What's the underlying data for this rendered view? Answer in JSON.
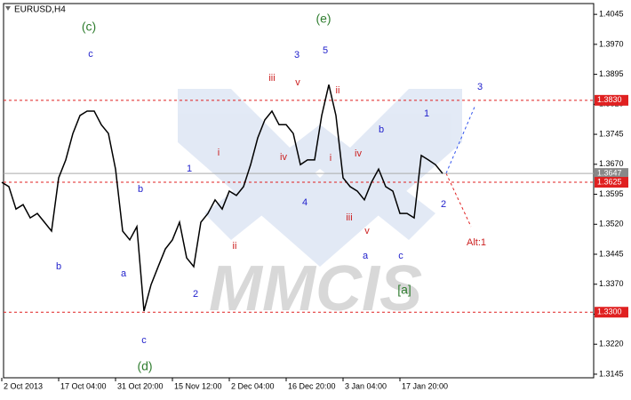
{
  "chart_data": {
    "type": "line",
    "title": "EURUSD,H4",
    "watermark": "MMCIS",
    "color": "#000000",
    "categories": [
      "2 Oct 2013",
      null,
      null,
      null,
      null,
      null,
      null,
      null,
      "17 Oct 04:00",
      null,
      null,
      null,
      null,
      null,
      null,
      null,
      "31 Oct 20:00",
      null,
      null,
      null,
      null,
      null,
      null,
      null,
      "15 Nov 12:00",
      null,
      null,
      null,
      null,
      null,
      null,
      null,
      "2 Dec 04:00",
      null,
      null,
      null,
      null,
      null,
      null,
      null,
      "16 Dec 20:00",
      null,
      null,
      null,
      null,
      null,
      null,
      null,
      "3 Jan 04:00",
      null,
      null,
      null,
      null,
      null,
      null,
      null,
      "17 Jan 20:00",
      null,
      null,
      null,
      null,
      null,
      null
    ],
    "values": [
      1.3625,
      1.3614,
      1.3558,
      1.3569,
      1.3536,
      1.3547,
      1.3525,
      1.3503,
      1.3636,
      1.3681,
      1.3747,
      1.3792,
      1.3803,
      1.3803,
      1.3769,
      1.3747,
      1.3658,
      1.3503,
      1.3481,
      1.3514,
      1.3303,
      1.3369,
      1.3414,
      1.3458,
      1.3481,
      1.3525,
      1.3436,
      1.3414,
      1.3525,
      1.3547,
      1.3581,
      1.3558,
      1.3603,
      1.3592,
      1.3614,
      1.3669,
      1.3736,
      1.3781,
      1.3803,
      1.3769,
      1.3769,
      1.3747,
      1.3669,
      1.3681,
      1.3681,
      1.3792,
      1.3869,
      1.3792,
      1.3636,
      1.3614,
      1.3603,
      1.3581,
      1.3625,
      1.3658,
      1.3614,
      1.3603,
      1.3547,
      1.3547,
      1.3536,
      1.3692,
      1.3681,
      1.3669,
      1.3647
    ],
    "ylim": [
      1.3136,
      1.4072
    ],
    "yticks": [
      1.4045,
      {
        "value": 1.397,
        "label": "1.3970"
      },
      1.3895,
      {
        "value": 1.382,
        "label": "1.3820"
      },
      1.3745,
      {
        "value": 1.367,
        "label": "1.3670"
      },
      1.3595,
      {
        "value": 1.352,
        "label": "1.3520"
      },
      1.3445,
      {
        "value": 1.337,
        "label": "1.3370"
      },
      1.3295,
      {
        "value": 1.322,
        "label": "1.3220"
      },
      1.3145
    ],
    "levels": [
      {
        "value": 1.383,
        "label": "1.3830"
      },
      1.3625,
      {
        "value": 1.33,
        "label": "1.3300"
      }
    ],
    "level_color": "#e02020",
    "current_price": 1.3647,
    "annotations": [
      "(c)",
      "(e)",
      "(d)",
      "[a]",
      "c",
      "b",
      "a",
      "c",
      "b",
      "1",
      "2",
      "3",
      "5",
      "4",
      "b",
      "a",
      "c",
      "1",
      "2",
      "3",
      "iii",
      "v",
      "i",
      "ii",
      "iv",
      "i",
      "ii",
      "iii",
      "iv",
      "v",
      "Alt:1"
    ]
  }
}
